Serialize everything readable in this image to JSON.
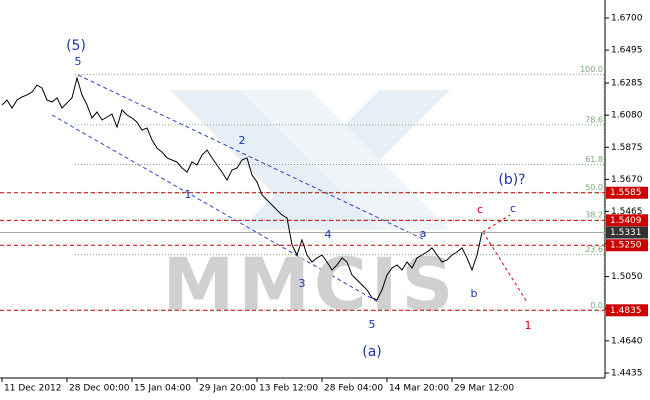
{
  "chart_data": {
    "type": "line",
    "watermark": "MMCIS",
    "series": [
      {
        "name": "price",
        "color": "#000000",
        "values": [
          1.6145,
          1.6177,
          1.6126,
          1.6177,
          1.6196,
          1.6209,
          1.6228,
          1.6272,
          1.6253,
          1.6177,
          1.6164,
          1.619,
          1.6126,
          1.6158,
          1.619,
          1.6317,
          1.6209,
          1.6145,
          1.6062,
          1.61,
          1.6049,
          1.6068,
          1.6087,
          1.6004,
          1.6113,
          1.6081,
          1.6062,
          1.6036,
          1.5985,
          1.5998,
          1.5922,
          1.587,
          1.5845,
          1.5807,
          1.5794,
          1.5781,
          1.5743,
          1.5717,
          1.5781,
          1.5762,
          1.5826,
          1.5858,
          1.5807,
          1.5762,
          1.5717,
          1.5666,
          1.573,
          1.5743,
          1.5794,
          1.5807,
          1.5698,
          1.5654,
          1.5571,
          1.5539,
          1.5507,
          1.5475,
          1.5443,
          1.5424,
          1.5252,
          1.5188,
          1.5284,
          1.5188,
          1.5143,
          1.5169,
          1.5188,
          1.5143,
          1.5092,
          1.5124,
          1.5169,
          1.5143,
          1.506,
          1.5028,
          1.4997,
          1.4965,
          1.4914,
          1.4901,
          1.4965,
          1.506,
          1.5105,
          1.5124,
          1.5092,
          1.5143,
          1.5105,
          1.5169,
          1.5188,
          1.5207,
          1.5233,
          1.5188,
          1.5143,
          1.5156,
          1.5188,
          1.5207,
          1.5233,
          1.5169,
          1.5092,
          1.5188,
          1.5331
        ]
      }
    ],
    "xlim": [
      0,
      120
    ],
    "xticks": [
      {
        "value": 0,
        "label": "11 Dec 2012"
      },
      {
        "value": 13,
        "label": "28 Dec 00:00"
      },
      {
        "value": 26,
        "label": "15 Jan 04:00"
      },
      {
        "value": 39,
        "label": "29 Jan 20:00"
      },
      {
        "value": 51,
        "label": "13 Feb 12:00"
      },
      {
        "value": 64,
        "label": "28 Feb 04:00"
      },
      {
        "value": 77,
        "label": "14 Mar 20:00"
      },
      {
        "value": 90,
        "label": "29 Mar 12:00"
      }
    ],
    "ylim": [
      1.4403,
      1.6802
    ],
    "yticks": [
      {
        "value": 1.67,
        "label": "1.6700"
      },
      1.6495,
      1.6285,
      {
        "value": 1.608,
        "label": "1.6080"
      },
      1.5875,
      {
        "value": 1.567,
        "label": "1.5670"
      },
      1.5465,
      {
        "value": 1.526,
        "label": "1.5260"
      },
      {
        "value": 1.505,
        "label": "1.5050"
      },
      1.4845,
      {
        "value": 1.464,
        "label": "1.4640"
      },
      1.4435
    ],
    "levels": [
      1.5585,
      1.5409,
      {
        "value": 1.525,
        "label": "1.5250"
      },
      1.4835
    ],
    "current": 1.5331,
    "fib_range": [
      1.4835,
      1.634
    ],
    "fib_levels": [
      {
        "value": 100,
        "label": "100.0"
      },
      78.6,
      61.8,
      {
        "value": 50,
        "label": "50.0"
      },
      38.2,
      23.6,
      {
        "value": 0,
        "label": "0.0"
      }
    ],
    "annotations": [
      "(5)",
      "5",
      "1",
      "2",
      "3",
      "4",
      "5",
      "(a)",
      "a",
      "b",
      "c",
      "(b)?",
      "c",
      "1"
    ]
  }
}
